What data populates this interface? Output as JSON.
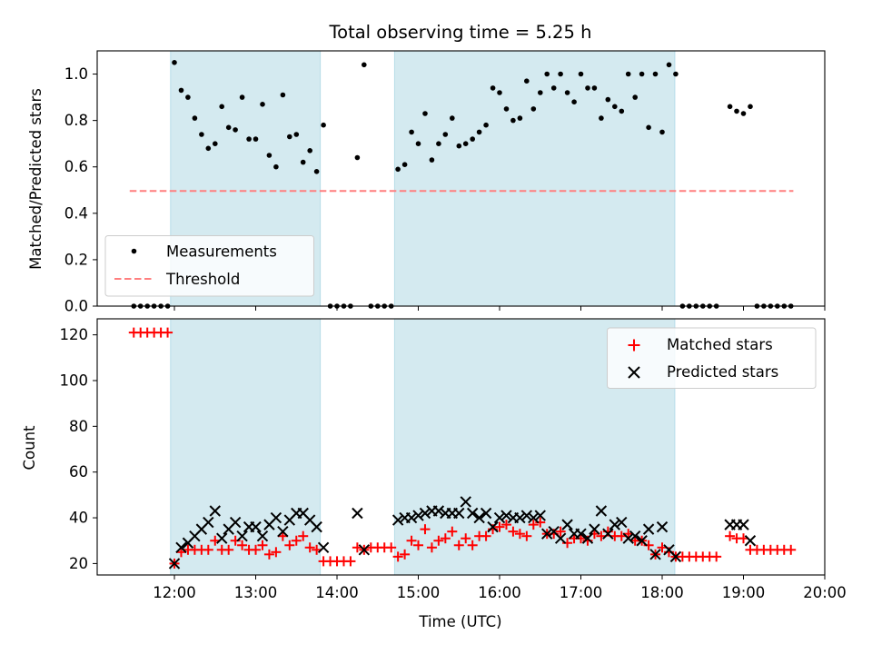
{
  "chart_data": [
    {
      "type": "scatter",
      "title": "Total observing time = 5.25 h",
      "xlabel": "",
      "ylabel": "Matched/Predicted stars",
      "ylim": [
        0,
        1.1
      ],
      "xlim": [
        "11:03",
        "20:00"
      ],
      "yticks": [
        "0.0",
        "0.2",
        "0.4",
        "0.6",
        "0.8",
        "1.0"
      ],
      "shaded_intervals": [
        [
          "12:00",
          "13:50"
        ],
        [
          "14:45",
          "18:10"
        ]
      ],
      "shade_color": "#d4eaf0",
      "legend": {
        "location": "lower-left",
        "entries": [
          "Measurements",
          "Threshold"
        ]
      },
      "series": [
        {
          "name": "Measurements",
          "color": "#000000",
          "x": [
            "11:30",
            "11:35",
            "11:40",
            "11:45",
            "11:50",
            "11:55",
            "12:00",
            "12:05",
            "12:10",
            "12:15",
            "12:20",
            "12:25",
            "12:30",
            "12:35",
            "12:40",
            "12:45",
            "12:50",
            "12:55",
            "13:00",
            "13:05",
            "13:10",
            "13:15",
            "13:20",
            "13:25",
            "13:30",
            "13:35",
            "13:40",
            "13:45",
            "13:50",
            "13:55",
            "14:00",
            "14:05",
            "14:10",
            "14:15",
            "14:20",
            "14:25",
            "14:30",
            "14:35",
            "14:40",
            "14:45",
            "14:50",
            "14:55",
            "15:00",
            "15:05",
            "15:10",
            "15:15",
            "15:20",
            "15:25",
            "15:30",
            "15:35",
            "15:40",
            "15:45",
            "15:50",
            "15:55",
            "16:00",
            "16:05",
            "16:10",
            "16:15",
            "16:20",
            "16:25",
            "16:30",
            "16:35",
            "16:40",
            "16:45",
            "16:50",
            "16:55",
            "17:00",
            "17:05",
            "17:10",
            "17:15",
            "17:20",
            "17:25",
            "17:30",
            "17:35",
            "17:40",
            "17:45",
            "17:50",
            "17:55",
            "18:00",
            "18:05",
            "18:10",
            "18:15",
            "18:20",
            "18:25",
            "18:30",
            "18:35",
            "18:40",
            "18:50",
            "18:55",
            "19:00",
            "19:05",
            "19:10",
            "19:15",
            "19:20",
            "19:25",
            "19:30",
            "19:35"
          ],
          "y": [
            0,
            0,
            0,
            0,
            0,
            0,
            1.05,
            0.93,
            0.9,
            0.81,
            0.74,
            0.68,
            0.7,
            0.86,
            0.77,
            0.76,
            0.9,
            0.72,
            0.72,
            0.87,
            0.65,
            0.6,
            0.91,
            0.73,
            0.74,
            0.62,
            0.67,
            0.58,
            0.78,
            0,
            0,
            0,
            0,
            0.64,
            1.04,
            0,
            0,
            0,
            0,
            0.59,
            0.61,
            0.75,
            0.7,
            0.83,
            0.63,
            0.7,
            0.74,
            0.81,
            0.69,
            0.7,
            0.72,
            0.75,
            0.78,
            0.94,
            0.92,
            0.85,
            0.8,
            0.81,
            0.97,
            0.85,
            0.92,
            1.0,
            0.94,
            1.0,
            0.92,
            0.88,
            1.0,
            0.94,
            0.94,
            0.81,
            0.89,
            0.86,
            0.84,
            1.0,
            0.9,
            1.0,
            0.77,
            1.0,
            0.75,
            1.04,
            1.0,
            0,
            0,
            0,
            0,
            0,
            0,
            0.86,
            0.84,
            0.83,
            0.86,
            0,
            0,
            0,
            0,
            0,
            0
          ]
        },
        {
          "name": "Threshold",
          "color": "#ff7f7f",
          "style": "dashed",
          "x": [
            "11:30",
            "19:35"
          ],
          "y": [
            0.5,
            0.5
          ]
        }
      ]
    },
    {
      "type": "scatter",
      "title": "",
      "xlabel": "Time (UTC)",
      "ylabel": "Count",
      "ylim": [
        15,
        127
      ],
      "xlim": [
        "11:03",
        "20:00"
      ],
      "yticks": [
        "20",
        "40",
        "60",
        "80",
        "100",
        "120"
      ],
      "xticks": [
        "12:00",
        "13:00",
        "14:00",
        "15:00",
        "16:00",
        "17:00",
        "18:00",
        "19:00",
        "20:00"
      ],
      "shaded_intervals": [
        [
          "12:00",
          "13:50"
        ],
        [
          "14:45",
          "18:10"
        ]
      ],
      "shade_color": "#d4eaf0",
      "legend": {
        "location": "top-right",
        "entries": [
          "Matched stars",
          "Predicted stars"
        ]
      },
      "series": [
        {
          "name": "Matched stars",
          "marker": "plus",
          "color": "#ff0000",
          "x": [
            "11:30",
            "11:35",
            "11:40",
            "11:45",
            "11:50",
            "11:55",
            "12:00",
            "12:05",
            "12:10",
            "12:15",
            "12:20",
            "12:25",
            "12:30",
            "12:35",
            "12:40",
            "12:45",
            "12:50",
            "12:55",
            "13:00",
            "13:05",
            "13:10",
            "13:15",
            "13:20",
            "13:25",
            "13:30",
            "13:35",
            "13:40",
            "13:45",
            "13:50",
            "13:55",
            "14:00",
            "14:05",
            "14:10",
            "14:15",
            "14:20",
            "14:25",
            "14:30",
            "14:35",
            "14:40",
            "14:45",
            "14:50",
            "14:55",
            "15:00",
            "15:05",
            "15:10",
            "15:15",
            "15:20",
            "15:25",
            "15:30",
            "15:35",
            "15:40",
            "15:45",
            "15:50",
            "15:55",
            "16:00",
            "16:05",
            "16:10",
            "16:15",
            "16:20",
            "16:25",
            "16:30",
            "16:35",
            "16:40",
            "16:45",
            "16:50",
            "16:55",
            "17:00",
            "17:05",
            "17:10",
            "17:15",
            "17:20",
            "17:25",
            "17:30",
            "17:35",
            "17:40",
            "17:45",
            "17:50",
            "17:55",
            "18:00",
            "18:05",
            "18:10",
            "18:15",
            "18:20",
            "18:25",
            "18:30",
            "18:35",
            "18:40",
            "18:50",
            "18:55",
            "19:00",
            "19:05",
            "19:10",
            "19:15",
            "19:20",
            "19:25",
            "19:30",
            "19:35"
          ],
          "y": [
            121,
            121,
            121,
            121,
            121,
            121,
            20,
            25,
            26,
            26,
            26,
            26,
            30,
            26,
            26,
            30,
            28,
            26,
            26,
            28,
            24,
            25,
            32,
            28,
            30,
            32,
            27,
            26,
            21,
            21,
            21,
            21,
            21,
            27,
            26,
            27,
            27,
            27,
            27,
            23,
            24,
            30,
            28,
            35,
            27,
            30,
            31,
            34,
            28,
            31,
            28,
            32,
            32,
            35,
            36,
            37,
            34,
            33,
            32,
            37,
            38,
            33,
            33,
            34,
            29,
            31,
            31,
            30,
            33,
            32,
            34,
            32,
            32,
            33,
            30,
            30,
            28,
            24,
            27,
            25,
            23,
            23,
            23,
            23,
            23,
            23,
            23,
            32,
            31,
            31,
            26,
            26,
            26,
            26,
            26,
            26,
            26
          ]
        },
        {
          "name": "Predicted stars",
          "marker": "x",
          "color": "#000000",
          "x": [
            "12:00",
            "12:05",
            "12:10",
            "12:15",
            "12:20",
            "12:25",
            "12:30",
            "12:35",
            "12:40",
            "12:45",
            "12:50",
            "12:55",
            "13:00",
            "13:05",
            "13:10",
            "13:15",
            "13:20",
            "13:25",
            "13:30",
            "13:35",
            "13:40",
            "13:45",
            "13:50",
            "14:15",
            "14:20",
            "14:45",
            "14:50",
            "14:55",
            "15:00",
            "15:05",
            "15:10",
            "15:15",
            "15:20",
            "15:25",
            "15:30",
            "15:35",
            "15:40",
            "15:45",
            "15:50",
            "15:55",
            "16:00",
            "16:05",
            "16:10",
            "16:15",
            "16:20",
            "16:25",
            "16:30",
            "16:35",
            "16:40",
            "16:45",
            "16:50",
            "16:55",
            "17:00",
            "17:05",
            "17:10",
            "17:15",
            "17:20",
            "17:25",
            "17:30",
            "17:35",
            "17:40",
            "17:45",
            "17:50",
            "17:55",
            "18:00",
            "18:05",
            "18:10",
            "18:50",
            "18:55",
            "19:00",
            "19:05"
          ],
          "y": [
            20,
            27,
            29,
            32,
            35,
            38,
            43,
            31,
            35,
            38,
            32,
            36,
            36,
            32,
            37,
            40,
            34,
            39,
            42,
            42,
            39,
            36,
            27,
            42,
            26,
            39,
            40,
            40,
            41,
            42,
            43,
            43,
            42,
            42,
            42,
            47,
            42,
            40,
            42,
            36,
            40,
            41,
            40,
            40,
            41,
            40,
            41,
            33,
            34,
            31,
            37,
            33,
            33,
            31,
            35,
            43,
            33,
            37,
            38,
            31,
            32,
            30,
            35,
            24,
            36,
            26,
            23,
            37,
            37,
            37,
            30
          ]
        }
      ]
    }
  ]
}
